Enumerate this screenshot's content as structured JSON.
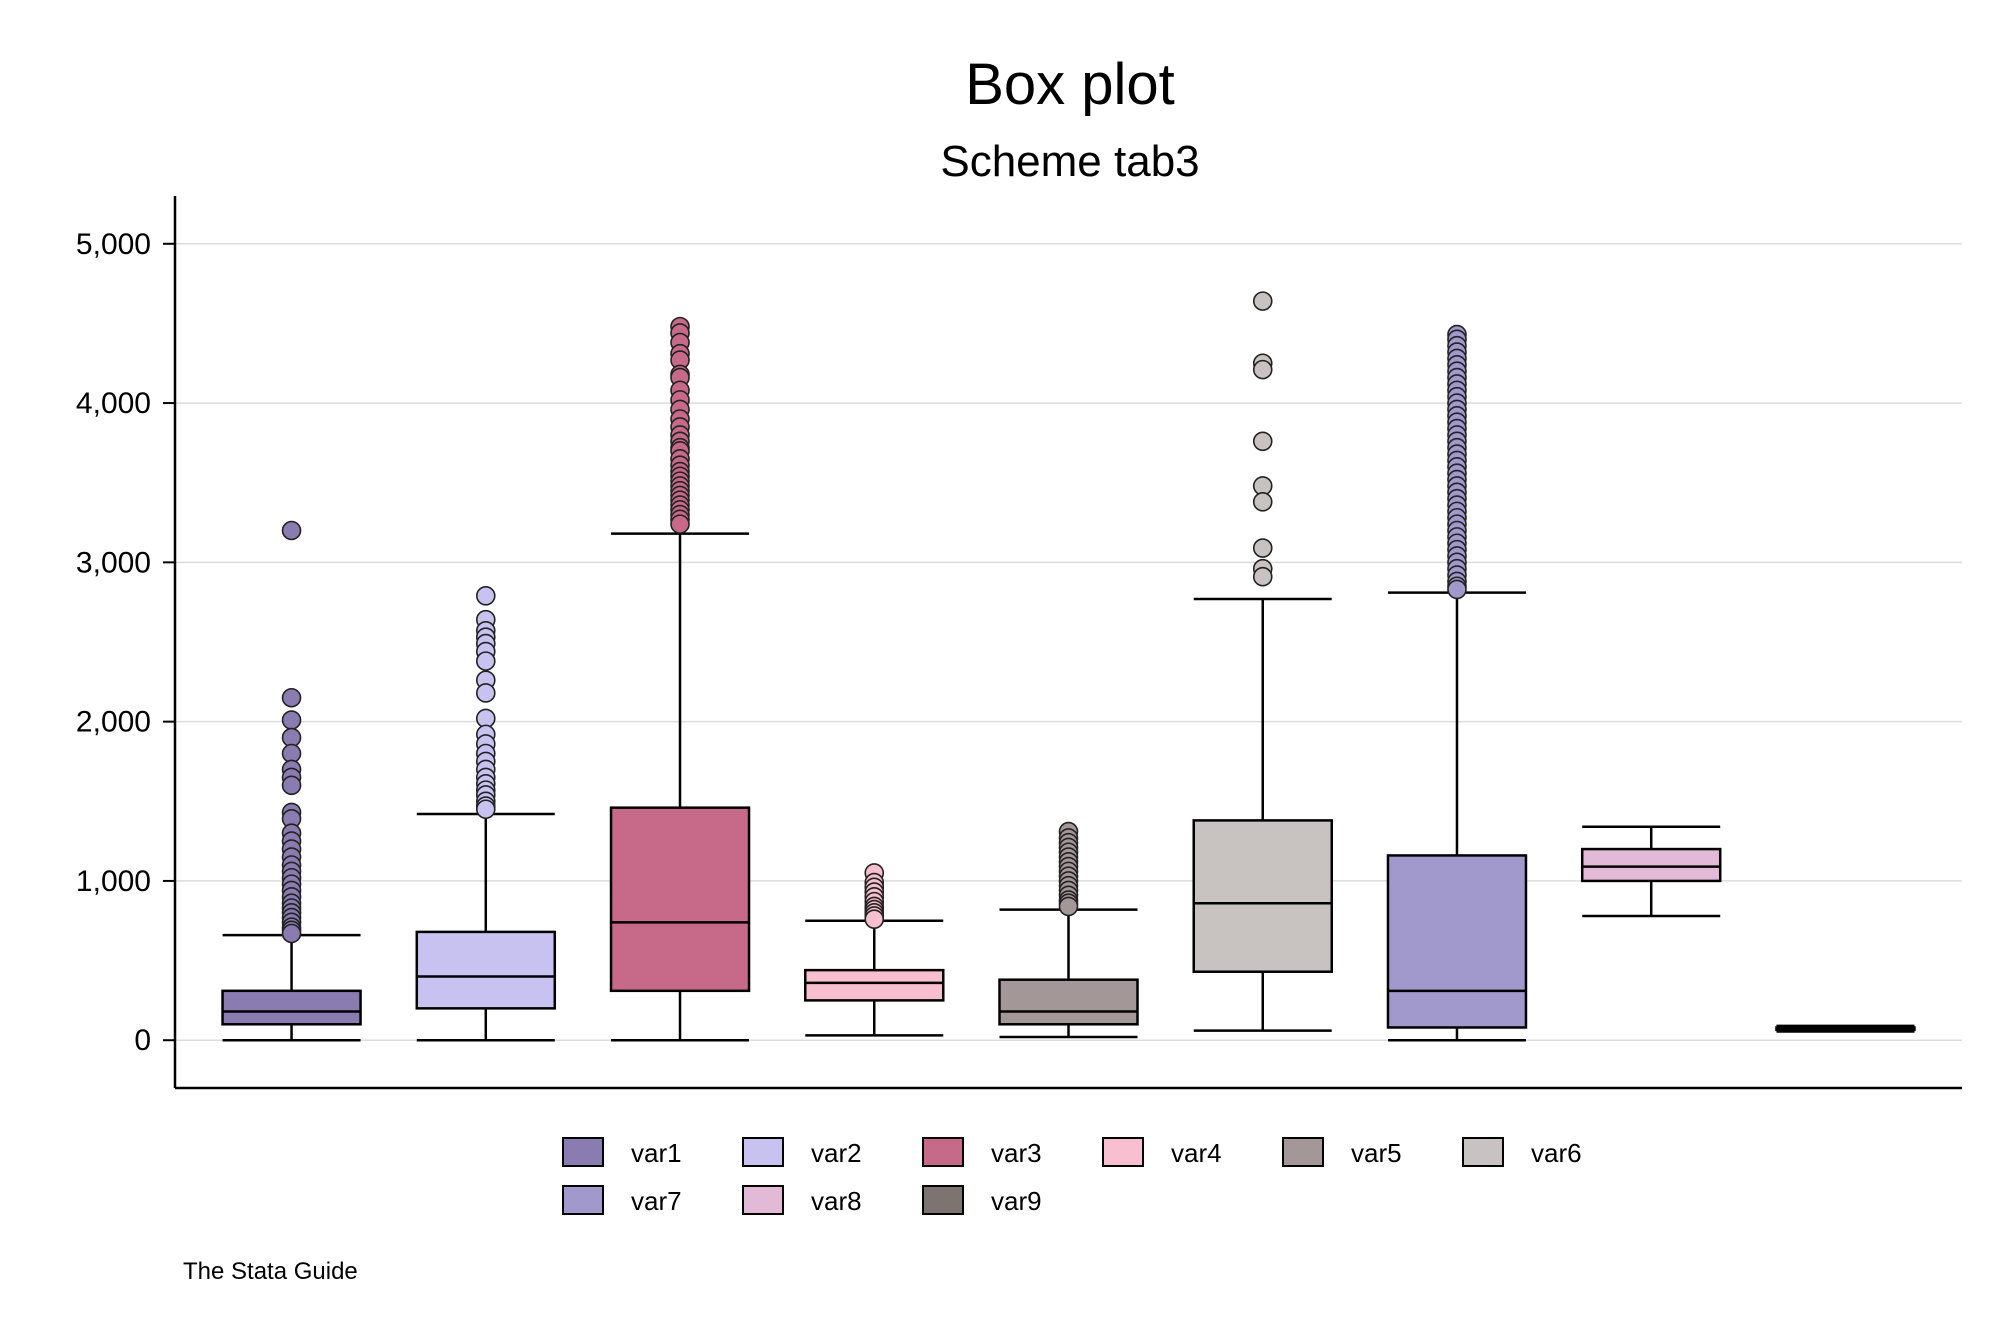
{
  "chart_data": {
    "type": "box",
    "title": "Box plot",
    "subtitle": "Scheme tab3",
    "note": "The Stata Guide",
    "xlabel": "",
    "ylabel": "",
    "ylim": [
      -300,
      5300
    ],
    "yticks": [
      0,
      1000,
      2000,
      3000,
      4000,
      5000
    ],
    "ytick_labels": [
      "0",
      "1,000",
      "2,000",
      "3,000",
      "4,000",
      "5,000"
    ],
    "grid": true,
    "legend_position": "bottom",
    "series": [
      {
        "name": "var1",
        "color": "#8a7bb0",
        "min": 0,
        "q1": 100,
        "median": 180,
        "q3": 310,
        "max": 660,
        "outliers": [
          3200,
          2150,
          2010,
          1900,
          1800,
          1700,
          1650,
          1600,
          1430,
          1390,
          1300,
          1250,
          1200,
          1150,
          1100,
          1060,
          1020,
          980,
          940,
          900,
          860,
          830,
          800,
          770,
          740,
          710,
          690,
          670
        ]
      },
      {
        "name": "var2",
        "color": "#c8c2f0",
        "min": 0,
        "q1": 200,
        "median": 400,
        "q3": 680,
        "max": 1420,
        "outliers": [
          2790,
          2640,
          2570,
          2530,
          2490,
          2440,
          2380,
          2260,
          2180,
          2020,
          1920,
          1860,
          1800,
          1750,
          1700,
          1650,
          1610,
          1570,
          1540,
          1500,
          1470,
          1450
        ]
      },
      {
        "name": "var3",
        "color": "#c76a8a",
        "min": 0,
        "q1": 310,
        "median": 740,
        "q3": 1460,
        "max": 3180,
        "outliers": [
          4480,
          4440,
          4380,
          4310,
          4270,
          4180,
          4160,
          4080,
          4020,
          3960,
          3900,
          3850,
          3800,
          3760,
          3720,
          3700,
          3650,
          3610,
          3570,
          3540,
          3510,
          3480,
          3450,
          3420,
          3390,
          3360,
          3330,
          3300,
          3270,
          3240
        ]
      },
      {
        "name": "var4",
        "color": "#f7bfd0",
        "min": 30,
        "q1": 250,
        "median": 360,
        "q3": 440,
        "max": 750,
        "outliers": [
          1050,
          990,
          960,
          930,
          900,
          870,
          840,
          820,
          800,
          780,
          760
        ]
      },
      {
        "name": "var5",
        "color": "#a39797",
        "min": 20,
        "q1": 100,
        "median": 180,
        "q3": 380,
        "max": 820,
        "outliers": [
          1310,
          1270,
          1240,
          1210,
          1180,
          1150,
          1120,
          1090,
          1060,
          1030,
          1000,
          970,
          940,
          910,
          880,
          860,
          840
        ]
      },
      {
        "name": "var6",
        "color": "#c8c3c0",
        "min": 60,
        "q1": 430,
        "median": 860,
        "q3": 1380,
        "max": 2770,
        "outliers": [
          4640,
          4250,
          4210,
          3760,
          3480,
          3380,
          3090,
          2960,
          2910
        ]
      },
      {
        "name": "var7",
        "color": "#a198cc",
        "min": 0,
        "q1": 80,
        "median": 310,
        "q3": 1160,
        "max": 2810,
        "outliers": [
          4430,
          4400,
          4360,
          4320,
          4280,
          4240,
          4200,
          4160,
          4120,
          4080,
          4040,
          4000,
          3960,
          3920,
          3880,
          3840,
          3800,
          3760,
          3720,
          3680,
          3640,
          3600,
          3560,
          3520,
          3480,
          3440,
          3400,
          3360,
          3320,
          3280,
          3240,
          3200,
          3160,
          3120,
          3080,
          3040,
          3000,
          2960,
          2920,
          2880,
          2850,
          2830
        ]
      },
      {
        "name": "var8",
        "color": "#e2b9d6",
        "min": 780,
        "q1": 1000,
        "median": 1090,
        "q3": 1200,
        "max": 1340,
        "outliers": []
      },
      {
        "name": "var9",
        "color": "#7d7371",
        "min": 55,
        "q1": 65,
        "median": 72,
        "q3": 80,
        "max": 90,
        "outliers": []
      }
    ]
  }
}
